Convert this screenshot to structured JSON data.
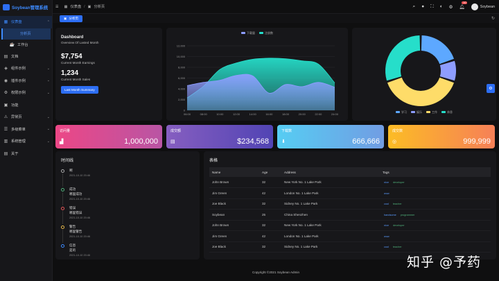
{
  "app": {
    "title": "Soybean管理系统"
  },
  "sidebar": {
    "items": [
      {
        "label": "仪表盘",
        "icon": "dashboard-icon",
        "glyph": "▦",
        "expanded": true
      },
      {
        "label": "分析页",
        "icon": "analysis-icon",
        "glyph": "",
        "sub": true,
        "active": true
      },
      {
        "label": "工作台",
        "icon": "workbench-icon",
        "glyph": "☕",
        "sub": true
      },
      {
        "label": "文档",
        "icon": "document-icon",
        "glyph": "▤"
      },
      {
        "label": "组件示例",
        "icon": "component-icon",
        "glyph": "◈"
      },
      {
        "label": "插件示例",
        "icon": "plugin-icon",
        "glyph": "◉"
      },
      {
        "label": "权限示例",
        "icon": "permission-icon",
        "glyph": "⚙"
      },
      {
        "label": "功能",
        "icon": "function-icon",
        "glyph": "▣"
      },
      {
        "label": "异常页",
        "icon": "exception-icon",
        "glyph": "⚠"
      },
      {
        "label": "多级菜单",
        "icon": "multi-menu-icon",
        "glyph": "☰"
      },
      {
        "label": "系统管理",
        "icon": "system-icon",
        "glyph": "▥"
      },
      {
        "label": "关于",
        "icon": "about-icon",
        "glyph": "▤"
      }
    ]
  },
  "header": {
    "breadcrumb": [
      {
        "label": "仪表盘"
      },
      {
        "label": "分析页"
      }
    ],
    "user": "Soybean",
    "notification_count": "10"
  },
  "tabs": [
    {
      "label": "分析页"
    }
  ],
  "dashboard": {
    "title": "Dashboard",
    "subtitle": "Overview Of Lasted Month",
    "earnings": "$7,754",
    "earnings_label": "Current Month Earnings",
    "sales": "1,234",
    "sales_label": "Current Month Sales",
    "button": "Last Month Summary"
  },
  "stats": [
    {
      "title": "访问量",
      "value": "1,000,000",
      "icon": "bar-chart-icon",
      "glyph": "▟",
      "from": "#ec4786",
      "to": "#b955a4"
    },
    {
      "title": "成交额",
      "value": "$234,568",
      "icon": "wallet-icon",
      "glyph": "▤",
      "from": "#865ec0",
      "to": "#5144b4"
    },
    {
      "title": "下载数",
      "value": "666,666",
      "icon": "download-icon",
      "glyph": "⬇",
      "from": "#56cdf3",
      "to": "#719de3"
    },
    {
      "title": "成交数",
      "value": "999,999",
      "icon": "deal-icon",
      "glyph": "◎",
      "from": "#fcbc25",
      "to": "#f68057"
    }
  ],
  "timeline": {
    "title": "时间线",
    "items": [
      {
        "t1": "啊",
        "t2": "",
        "time": "2021-10-10 20:46",
        "color": "#aaaaaa"
      },
      {
        "t1": "成功",
        "t2": "哪里成功",
        "time": "2021-10-10 20:46",
        "color": "#4fb07a"
      },
      {
        "t1": "错误",
        "t2": "哪里错误",
        "time": "2021-10-10 20:46",
        "color": "#e05757"
      },
      {
        "t1": "警告",
        "t2": "哪里警告",
        "time": "2021-10-10 20:46",
        "color": "#e6b84a"
      },
      {
        "t1": "信息",
        "t2": "是的",
        "time": "2021-10-10 20:46",
        "color": "#3d8bff"
      }
    ]
  },
  "table": {
    "title": "表格",
    "columns": [
      "Name",
      "Age",
      "Address",
      "Tags"
    ],
    "rows": [
      {
        "name": "John Brown",
        "age": "32",
        "address": "New York No. 1 Lake Park",
        "tags": [
          "nice",
          "developer"
        ]
      },
      {
        "name": "Jim Green",
        "age": "42",
        "address": "London No. 1 Lake Park",
        "tags": [
          "wow"
        ]
      },
      {
        "name": "Joe Black",
        "age": "32",
        "address": "Sidney No. 1 Lake Park",
        "tags": [
          "cool",
          "teacher"
        ]
      },
      {
        "name": "Soybean",
        "age": "25",
        "address": "China Shenzhen",
        "tags": [
          "handsome",
          "programmer"
        ]
      },
      {
        "name": "John Brown",
        "age": "32",
        "address": "New York No. 1 Lake Park",
        "tags": [
          "nice",
          "developer"
        ]
      },
      {
        "name": "Jim Green",
        "age": "42",
        "address": "London No. 1 Lake Park",
        "tags": [
          "wow"
        ]
      },
      {
        "name": "Joe Black",
        "age": "32",
        "address": "Sidney No. 1 Lake Park",
        "tags": [
          "cool",
          "teacher"
        ]
      }
    ]
  },
  "footer": "Copyright ©2021 Soybean Admin",
  "watermark": "知乎 @予药",
  "chart_data": [
    {
      "type": "area",
      "title": "",
      "x": [
        "06:00",
        "08:00",
        "10:00",
        "12:00",
        "14:00",
        "16:00",
        "18:00",
        "20:00",
        "22:00",
        "24:00"
      ],
      "ylim": [
        0,
        12000
      ],
      "yticks": [
        "0",
        "2,000",
        "4,000",
        "6,000",
        "8,000",
        "10,000",
        "12,000"
      ],
      "legend_position": "top",
      "series": [
        {
          "name": "下载量",
          "color": "#8e9dff",
          "values": [
            4600,
            5200,
            5600,
            6500,
            6400,
            3200,
            4800,
            4400,
            5200,
            4300
          ]
        },
        {
          "name": "注册数",
          "color": "#26deca",
          "values": [
            2300,
            4500,
            7600,
            8800,
            9500,
            9700,
            9600,
            9200,
            8600,
            5100
          ]
        }
      ]
    },
    {
      "type": "pie",
      "legend_position": "bottom",
      "categories": [
        "学习",
        "娱乐",
        "工作",
        "休息"
      ],
      "values": [
        20,
        10,
        40,
        30
      ],
      "colors": [
        "#5da8ff",
        "#8e9dff",
        "#fedc69",
        "#26deca"
      ]
    }
  ]
}
